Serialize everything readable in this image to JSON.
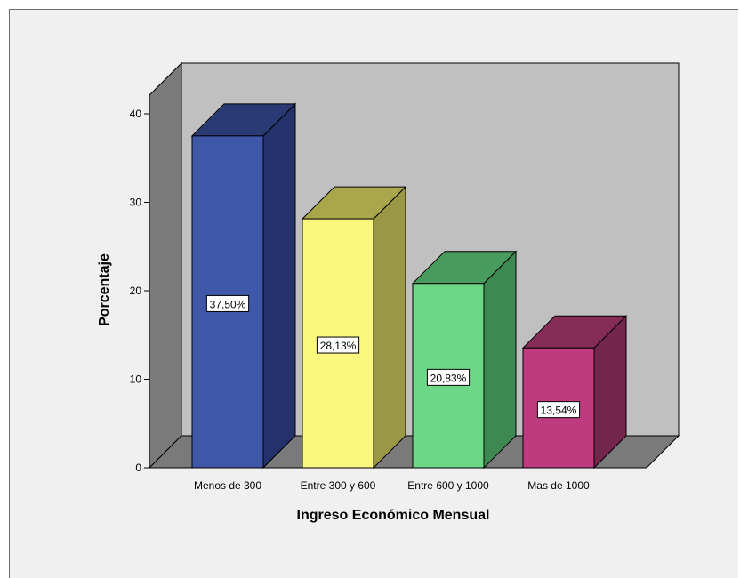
{
  "chart_data": {
    "type": "bar",
    "title": "",
    "xlabel": "Ingreso Económico Mensual",
    "ylabel": "Porcentaje",
    "categories": [
      "Menos de 300",
      "Entre 300 y 600",
      "Entre 600 y 1000",
      "Mas de 1000"
    ],
    "values": [
      37.5,
      28.13,
      20.83,
      13.54
    ],
    "data_labels": [
      "37,50%",
      "28,13%",
      "20,83%",
      "13,54%"
    ],
    "y_ticks": [
      "0",
      "10",
      "20",
      "30",
      "40"
    ],
    "ylim": [
      0,
      40
    ],
    "grid": false,
    "three_d": true,
    "colors": {
      "front": [
        "#3f57a8",
        "#f9f77e",
        "#6cd886",
        "#be3b80"
      ],
      "top": [
        "#293a75",
        "#a9a64c",
        "#489a5d",
        "#862c57"
      ],
      "side": [
        "#23326a",
        "#9a9746",
        "#3e8852",
        "#74254c"
      ],
      "back_wall": "#c0c0c0",
      "left_wall": "#7a7a7a",
      "floor": "#7a7a7a",
      "background": "#f0f0f0"
    }
  }
}
